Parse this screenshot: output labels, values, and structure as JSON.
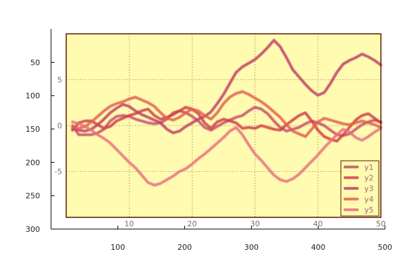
{
  "chart_data": {
    "type": "line",
    "title": "",
    "outer_axes": {
      "x_ticks": [
        "100",
        "200",
        "300",
        "400",
        "500"
      ],
      "y_ticks": [
        "50",
        "100",
        "150",
        "200",
        "250",
        "300"
      ],
      "xlim": [
        0,
        500
      ],
      "ylim": [
        300,
        0
      ]
    },
    "inner_axes": {
      "x_ticks": [
        "10",
        "20",
        "30",
        "40",
        "50"
      ],
      "y_ticks": [
        "5",
        "0",
        "-5"
      ],
      "xlim": [
        0,
        50
      ],
      "ylim": [
        -10,
        10
      ],
      "grid": true,
      "grid_style": "dotted",
      "background": "#fffbb0",
      "frame_color": "#5a1a00"
    },
    "legend_position": "bottom-right",
    "x": [
      1,
      2,
      3,
      4,
      5,
      6,
      7,
      8,
      9,
      10,
      11,
      12,
      13,
      14,
      15,
      16,
      17,
      18,
      19,
      20,
      21,
      22,
      23,
      24,
      25,
      26,
      27,
      28,
      29,
      30,
      31,
      32,
      33,
      34,
      35,
      36,
      37,
      38,
      39,
      40,
      41,
      42,
      43,
      44,
      45,
      46,
      47,
      48,
      49,
      50
    ],
    "series": [
      {
        "name": "y1",
        "color": "#c8506e",
        "values": [
          0,
          -1,
          -1,
          -1,
          -0.8,
          -0.4,
          0.5,
          1,
          1.1,
          1,
          0.7,
          0.5,
          0.3,
          0.2,
          0.3,
          0.7,
          1.4,
          1.6,
          1.4,
          1,
          0.5,
          -0.2,
          -0.5,
          -0.1,
          0.3,
          0.6,
          0.9,
          1.1,
          1.6,
          2,
          1.8,
          1.3,
          0.5,
          -0.2,
          -0.6,
          -0.4,
          -0.2,
          0.2,
          0.5,
          0.3,
          0,
          -0.5,
          -1,
          -1.1,
          -0.9,
          -0.4,
          0.1,
          0.4,
          0.6,
          0.4
        ]
      },
      {
        "name": "y2",
        "color": "#d0404a",
        "values": [
          -0.5,
          0.3,
          0.5,
          0.5,
          0.1,
          -0.3,
          -0.1,
          0.5,
          0.8,
          1.1,
          1.3,
          1.6,
          1.8,
          1.1,
          0.7,
          0.9,
          1.2,
          1.6,
          2,
          1.8,
          1.3,
          0.3,
          -0.3,
          0.4,
          0.7,
          0.5,
          0.3,
          -0.3,
          -0.2,
          -0.3,
          0,
          -0.2,
          -0.4,
          -0.5,
          0.1,
          0.6,
          1.1,
          1.4,
          0.5,
          -0.5,
          -1.2,
          -1.5,
          -1.7,
          -1,
          -0.2,
          0.6,
          1.1,
          1.3,
          0.8,
          0.3
        ]
      },
      {
        "name": "y3",
        "color": "#c0406a",
        "values": [
          -0.3,
          -0.5,
          -0.6,
          -0.4,
          0.1,
          0.7,
          1.4,
          1.9,
          2.3,
          2.1,
          1.6,
          1.2,
          0.9,
          0.6,
          0.3,
          -0.4,
          -0.8,
          -0.6,
          -0.1,
          0.3,
          0.7,
          1,
          1.5,
          2.4,
          3.4,
          4.6,
          5.8,
          6.4,
          6.8,
          7.2,
          7.8,
          8.5,
          9.3,
          8.6,
          7.4,
          6.1,
          5.3,
          4.5,
          3.8,
          3.3,
          3.6,
          4.6,
          5.8,
          6.7,
          7.1,
          7.4,
          7.8,
          7.5,
          7.1,
          6.6
        ]
      },
      {
        "name": "y4",
        "color": "#e06050",
        "values": [
          -0.2,
          -0.3,
          -0.1,
          0.4,
          1,
          1.6,
          2.1,
          2.4,
          2.6,
          2.9,
          3.1,
          2.8,
          2.5,
          2.1,
          1.4,
          0.8,
          0.6,
          0.9,
          1.4,
          1.8,
          1.6,
          1.1,
          0.7,
          1.4,
          2.4,
          3.1,
          3.5,
          3.7,
          3.4,
          3,
          2.6,
          2.1,
          1.5,
          0.9,
          0.1,
          -0.6,
          -0.9,
          -1.2,
          -0.4,
          0.4,
          0.8,
          0.6,
          0.4,
          0.2,
          0.1,
          0.3,
          0.5,
          0.3,
          0.1,
          -0.2
        ]
      },
      {
        "name": "y5",
        "color": "#e87080",
        "values": [
          0.4,
          0.2,
          -0.1,
          -0.5,
          -1,
          -1.4,
          -1.9,
          -2.6,
          -3.3,
          -4,
          -4.6,
          -5.4,
          -6.2,
          -6.5,
          -6.3,
          -5.9,
          -5.5,
          -5,
          -4.7,
          -4.2,
          -3.6,
          -3.1,
          -2.5,
          -1.9,
          -1.3,
          -0.6,
          -0.2,
          -1,
          -2.1,
          -3.1,
          -3.8,
          -4.6,
          -5.4,
          -5.9,
          -6.1,
          -5.8,
          -5.3,
          -4.6,
          -3.9,
          -3.2,
          -2.4,
          -1.7,
          -1,
          -0.4,
          -0.7,
          -1.3,
          -1.6,
          -1.2,
          -0.7,
          -0.3
        ]
      }
    ]
  }
}
